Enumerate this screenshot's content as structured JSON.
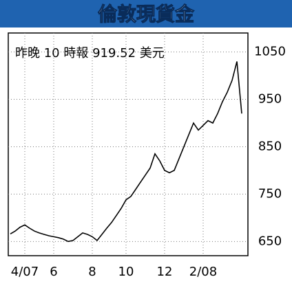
{
  "chart_data": {
    "type": "line",
    "title": "倫敦現貨金",
    "annotation": "昨晚 10 時報 919.52 美元",
    "categories": [
      null,
      null,
      null,
      "4/07",
      null,
      null,
      null,
      null,
      null,
      "6",
      null,
      null,
      null,
      null,
      null,
      null,
      null,
      "8",
      null,
      null,
      null,
      null,
      null,
      null,
      "10",
      null,
      null,
      null,
      null,
      null,
      null,
      null,
      "12",
      null,
      null,
      null,
      null,
      null,
      null,
      null,
      "2/08",
      null,
      null,
      null,
      null,
      null,
      null,
      null,
      null
    ],
    "values": [
      666,
      672,
      680,
      685,
      678,
      672,
      668,
      665,
      662,
      660,
      658,
      655,
      650,
      652,
      660,
      668,
      665,
      660,
      652,
      665,
      678,
      690,
      705,
      720,
      738,
      745,
      760,
      775,
      790,
      805,
      835,
      820,
      800,
      795,
      800,
      825,
      850,
      875,
      900,
      885,
      895,
      905,
      900,
      920,
      945,
      965,
      990,
      1030,
      920
    ],
    "color": "#000000",
    "ylim": [
      620,
      1090
    ],
    "yticks": [
      650,
      750,
      850,
      950,
      1050
    ],
    "grid": true
  }
}
